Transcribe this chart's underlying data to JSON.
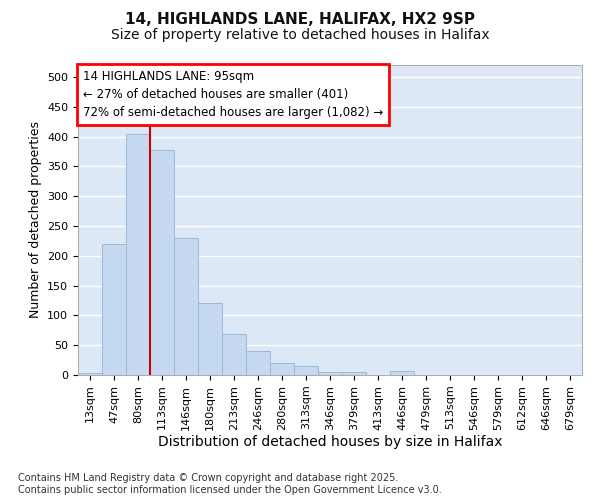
{
  "title1": "14, HIGHLANDS LANE, HALIFAX, HX2 9SP",
  "title2": "Size of property relative to detached houses in Halifax",
  "xlabel": "Distribution of detached houses by size in Halifax",
  "ylabel": "Number of detached properties",
  "bar_values": [
    3,
    220,
    405,
    378,
    230,
    120,
    68,
    40,
    20,
    15,
    5,
    5,
    0,
    7,
    0,
    0,
    0,
    0,
    0,
    0,
    0
  ],
  "categories": [
    "13sqm",
    "47sqm",
    "80sqm",
    "113sqm",
    "146sqm",
    "180sqm",
    "213sqm",
    "246sqm",
    "280sqm",
    "313sqm",
    "346sqm",
    "379sqm",
    "413sqm",
    "446sqm",
    "479sqm",
    "513sqm",
    "546sqm",
    "579sqm",
    "612sqm",
    "646sqm",
    "679sqm"
  ],
  "bar_color": "#c5d9f1",
  "bar_edge_color": "#9ab8d8",
  "background_color": "#dce8f5",
  "grid_color": "#ffffff",
  "vline_pos": 2.5,
  "vline_color": "#cc0000",
  "annotation_line1": "14 HIGHLANDS LANE: 95sqm",
  "annotation_line2": "← 27% of detached houses are smaller (401)",
  "annotation_line3": "72% of semi-detached houses are larger (1,082) →",
  "ylim": [
    0,
    520
  ],
  "yticks": [
    0,
    50,
    100,
    150,
    200,
    250,
    300,
    350,
    400,
    450,
    500
  ],
  "footer_text": "Contains HM Land Registry data © Crown copyright and database right 2025.\nContains public sector information licensed under the Open Government Licence v3.0.",
  "title1_fontsize": 11,
  "title2_fontsize": 10,
  "ylabel_fontsize": 9,
  "xlabel_fontsize": 10,
  "tick_fontsize": 8,
  "annotation_fontsize": 8.5,
  "footer_fontsize": 7
}
